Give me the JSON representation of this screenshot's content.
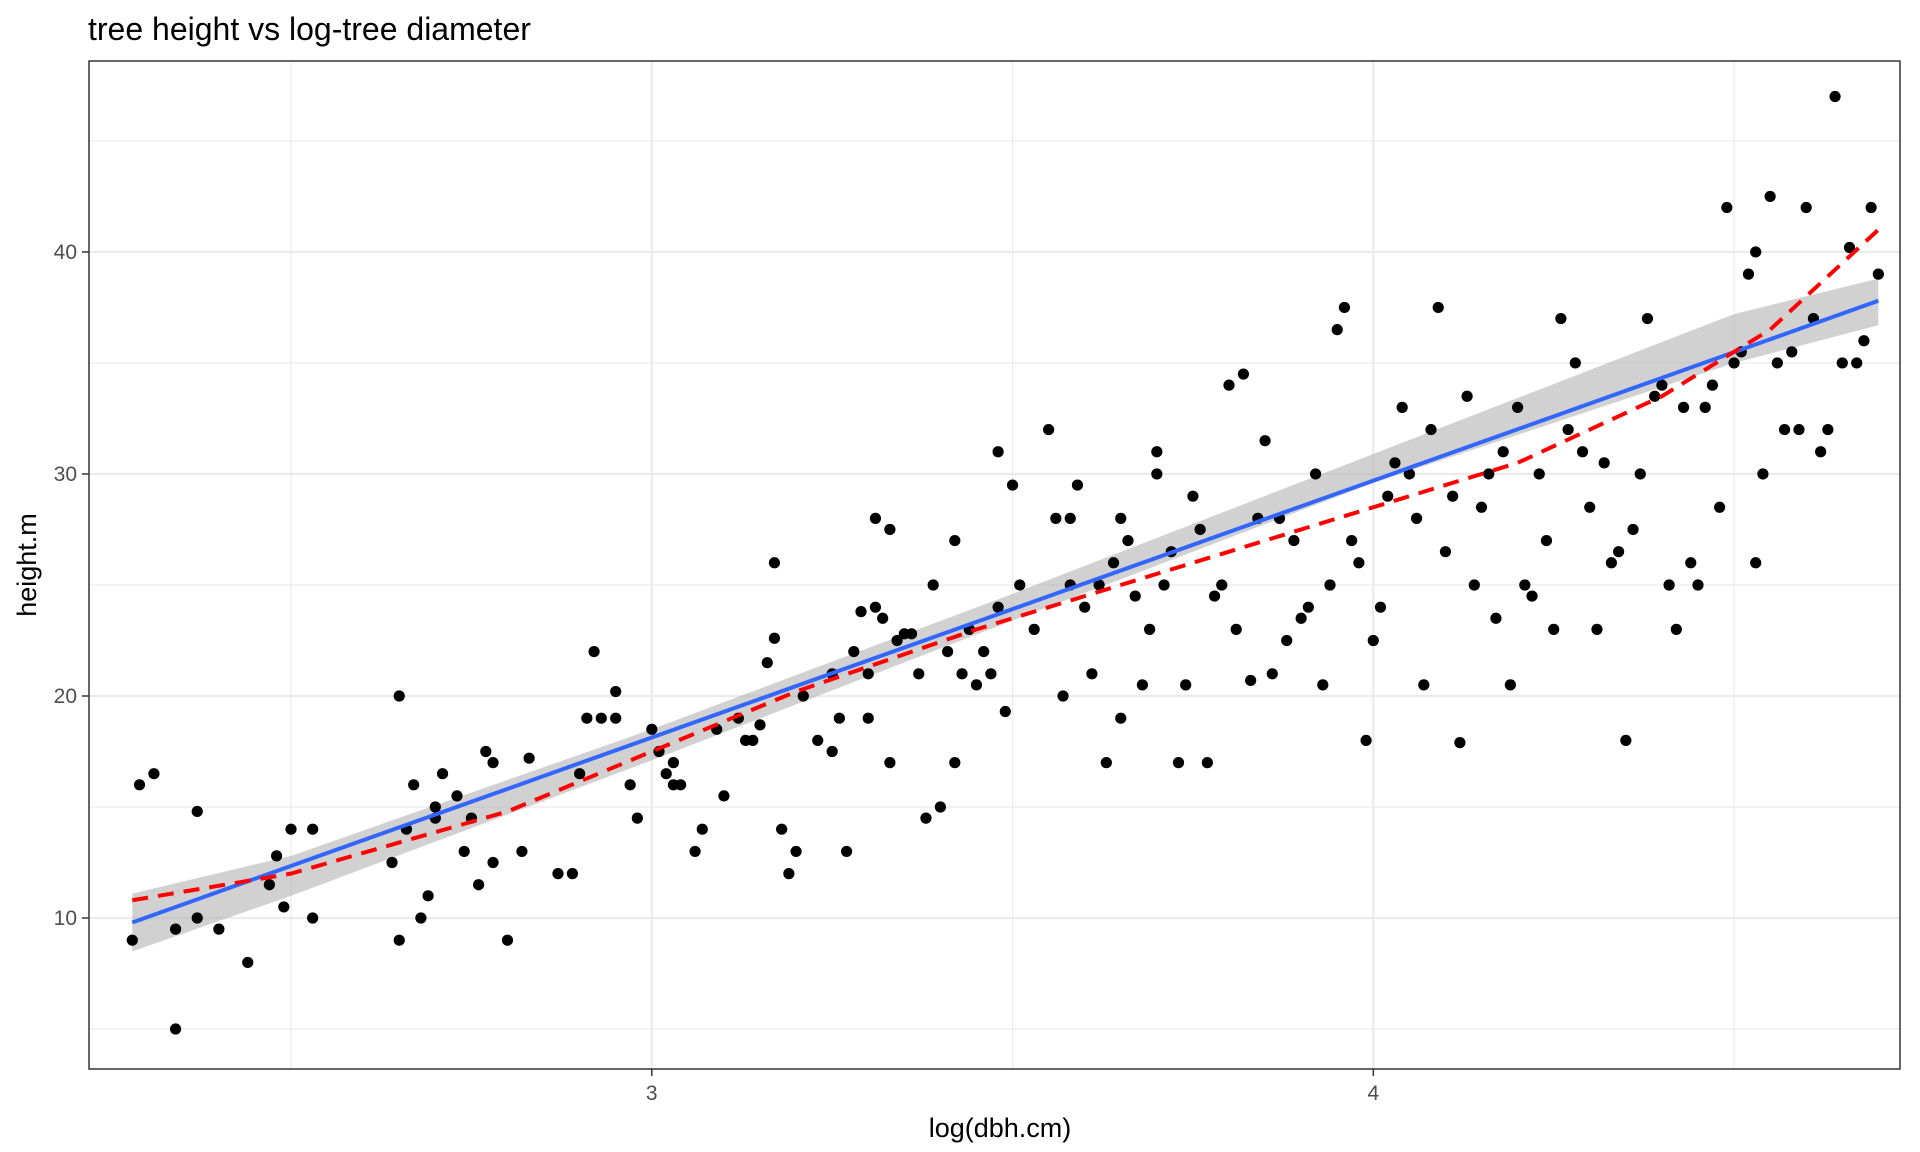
{
  "chart_data": {
    "type": "scatter",
    "title": "tree height vs log-tree diameter",
    "xlabel": "log(dbh.cm)",
    "ylabel": "height.m",
    "xlim": [
      2.22,
      4.73
    ],
    "ylim": [
      3.2,
      48.6
    ],
    "x_ticks": [
      3,
      4
    ],
    "y_ticks": [
      10,
      20,
      30,
      40
    ],
    "x_minor_ticks": [
      2.5,
      3.5,
      4.5
    ],
    "y_minor_ticks": [
      5,
      15,
      25,
      35,
      45
    ],
    "grid": true,
    "colors": {
      "points": "#000000",
      "linear_fit": "#3366ff",
      "confidence_band": "#b3b3b3",
      "smooth_fit": "#ff0000",
      "grid": "#ebebeb",
      "panel_border": "#333333"
    },
    "series": [
      {
        "type": "points",
        "values": [
          [
            2.34,
            5.0
          ],
          [
            2.34,
            9.5
          ],
          [
            2.37,
            10.0
          ],
          [
            2.4,
            9.5
          ],
          [
            2.44,
            8.0
          ],
          [
            2.47,
            11.5
          ],
          [
            2.48,
            12.8
          ],
          [
            2.49,
            10.5
          ],
          [
            2.5,
            14.0
          ],
          [
            2.53,
            14.0
          ],
          [
            2.53,
            10.0
          ],
          [
            2.31,
            16.5
          ],
          [
            2.29,
            16.0
          ],
          [
            2.37,
            14.8
          ],
          [
            2.28,
            9.0
          ],
          [
            2.64,
            12.5
          ],
          [
            2.65,
            20.0
          ],
          [
            2.65,
            9.0
          ],
          [
            2.66,
            14.0
          ],
          [
            2.67,
            16.0
          ],
          [
            2.68,
            10.0
          ],
          [
            2.69,
            11.0
          ],
          [
            2.7,
            15.0
          ],
          [
            2.7,
            14.5
          ],
          [
            2.71,
            16.5
          ],
          [
            2.73,
            15.5
          ],
          [
            2.74,
            13.0
          ],
          [
            2.75,
            14.5
          ],
          [
            2.76,
            11.5
          ],
          [
            2.77,
            17.5
          ],
          [
            2.78,
            17.0
          ],
          [
            2.78,
            12.5
          ],
          [
            2.8,
            9.0
          ],
          [
            2.82,
            13.0
          ],
          [
            2.83,
            17.2
          ],
          [
            2.87,
            12.0
          ],
          [
            2.89,
            12.0
          ],
          [
            2.9,
            16.5
          ],
          [
            2.92,
            22.0
          ],
          [
            2.93,
            19.0
          ],
          [
            2.91,
            19.0
          ],
          [
            2.95,
            19.0
          ],
          [
            2.95,
            20.2
          ],
          [
            2.97,
            16.0
          ],
          [
            2.98,
            14.5
          ],
          [
            3.0,
            18.5
          ],
          [
            3.01,
            17.5
          ],
          [
            3.02,
            16.5
          ],
          [
            3.03,
            17.0
          ],
          [
            3.03,
            16.0
          ],
          [
            3.04,
            16.0
          ],
          [
            3.06,
            13.0
          ],
          [
            3.07,
            14.0
          ],
          [
            3.09,
            18.5
          ],
          [
            3.1,
            15.5
          ],
          [
            3.12,
            19.0
          ],
          [
            3.13,
            18.0
          ],
          [
            3.14,
            18.0
          ],
          [
            3.15,
            18.7
          ],
          [
            3.16,
            21.5
          ],
          [
            3.17,
            22.6
          ],
          [
            3.17,
            26.0
          ],
          [
            3.18,
            14.0
          ],
          [
            3.19,
            12.0
          ],
          [
            3.2,
            13.0
          ],
          [
            3.21,
            20.0
          ],
          [
            3.23,
            18.0
          ],
          [
            3.25,
            21.0
          ],
          [
            3.25,
            17.5
          ],
          [
            3.26,
            19.0
          ],
          [
            3.27,
            13.0
          ],
          [
            3.28,
            22.0
          ],
          [
            3.29,
            23.8
          ],
          [
            3.3,
            21.0
          ],
          [
            3.3,
            19.0
          ],
          [
            3.31,
            24.0
          ],
          [
            3.31,
            28.0
          ],
          [
            3.32,
            23.5
          ],
          [
            3.33,
            17.0
          ],
          [
            3.33,
            27.5
          ],
          [
            3.34,
            22.5
          ],
          [
            3.35,
            22.8
          ],
          [
            3.36,
            22.8
          ],
          [
            3.37,
            21.0
          ],
          [
            3.38,
            14.5
          ],
          [
            3.39,
            25.0
          ],
          [
            3.4,
            15.0
          ],
          [
            3.41,
            22.0
          ],
          [
            3.42,
            17.0
          ],
          [
            3.42,
            27.0
          ],
          [
            3.43,
            21.0
          ],
          [
            3.44,
            23.0
          ],
          [
            3.45,
            20.5
          ],
          [
            3.46,
            22.0
          ],
          [
            3.47,
            21.0
          ],
          [
            3.48,
            24.0
          ],
          [
            3.48,
            31.0
          ],
          [
            3.49,
            19.3
          ],
          [
            3.5,
            29.5
          ],
          [
            3.51,
            25.0
          ],
          [
            3.53,
            23.0
          ],
          [
            3.55,
            32.0
          ],
          [
            3.56,
            28.0
          ],
          [
            3.57,
            20.0
          ],
          [
            3.58,
            28.0
          ],
          [
            3.58,
            25.0
          ],
          [
            3.59,
            29.5
          ],
          [
            3.6,
            24.0
          ],
          [
            3.61,
            21.0
          ],
          [
            3.62,
            25.0
          ],
          [
            3.63,
            17.0
          ],
          [
            3.64,
            26.0
          ],
          [
            3.65,
            19.0
          ],
          [
            3.65,
            28.0
          ],
          [
            3.66,
            27.0
          ],
          [
            3.67,
            24.5
          ],
          [
            3.68,
            20.5
          ],
          [
            3.69,
            23.0
          ],
          [
            3.7,
            31.0
          ],
          [
            3.7,
            30.0
          ],
          [
            3.71,
            25.0
          ],
          [
            3.72,
            26.5
          ],
          [
            3.73,
            17.0
          ],
          [
            3.74,
            20.5
          ],
          [
            3.75,
            29.0
          ],
          [
            3.76,
            27.5
          ],
          [
            3.77,
            17.0
          ],
          [
            3.78,
            24.5
          ],
          [
            3.79,
            25.0
          ],
          [
            3.8,
            34.0
          ],
          [
            3.81,
            23.0
          ],
          [
            3.82,
            34.5
          ],
          [
            3.83,
            20.7
          ],
          [
            3.84,
            28.0
          ],
          [
            3.85,
            31.5
          ],
          [
            3.86,
            21.0
          ],
          [
            3.87,
            28.0
          ],
          [
            3.88,
            22.5
          ],
          [
            3.89,
            27.0
          ],
          [
            3.9,
            23.5
          ],
          [
            3.91,
            24.0
          ],
          [
            3.92,
            30.0
          ],
          [
            3.93,
            20.5
          ],
          [
            3.94,
            25.0
          ],
          [
            3.95,
            36.5
          ],
          [
            3.96,
            37.5
          ],
          [
            3.97,
            27.0
          ],
          [
            3.98,
            26.0
          ],
          [
            3.99,
            18.0
          ],
          [
            4.0,
            22.5
          ],
          [
            4.01,
            24.0
          ],
          [
            4.02,
            29.0
          ],
          [
            4.03,
            30.5
          ],
          [
            4.04,
            33.0
          ],
          [
            4.05,
            30.0
          ],
          [
            4.06,
            28.0
          ],
          [
            4.07,
            20.5
          ],
          [
            4.08,
            32.0
          ],
          [
            4.09,
            37.5
          ],
          [
            4.1,
            26.5
          ],
          [
            4.11,
            29.0
          ],
          [
            4.12,
            17.9
          ],
          [
            4.13,
            33.5
          ],
          [
            4.14,
            25.0
          ],
          [
            4.15,
            28.5
          ],
          [
            4.16,
            30.0
          ],
          [
            4.17,
            23.5
          ],
          [
            4.18,
            31.0
          ],
          [
            4.19,
            20.5
          ],
          [
            4.2,
            33.0
          ],
          [
            4.21,
            25.0
          ],
          [
            4.22,
            24.5
          ],
          [
            4.23,
            30.0
          ],
          [
            4.24,
            27.0
          ],
          [
            4.25,
            23.0
          ],
          [
            4.26,
            37.0
          ],
          [
            4.27,
            32.0
          ],
          [
            4.28,
            35.0
          ],
          [
            4.29,
            31.0
          ],
          [
            4.3,
            28.5
          ],
          [
            4.31,
            23.0
          ],
          [
            4.32,
            30.5
          ],
          [
            4.33,
            26.0
          ],
          [
            4.34,
            26.5
          ],
          [
            4.35,
            18.0
          ],
          [
            4.36,
            27.5
          ],
          [
            4.37,
            30.0
          ],
          [
            4.38,
            37.0
          ],
          [
            4.39,
            33.5
          ],
          [
            4.4,
            34.0
          ],
          [
            4.41,
            25.0
          ],
          [
            4.42,
            23.0
          ],
          [
            4.43,
            33.0
          ],
          [
            4.44,
            26.0
          ],
          [
            4.45,
            25.0
          ],
          [
            4.46,
            33.0
          ],
          [
            4.47,
            34.0
          ],
          [
            4.48,
            28.5
          ],
          [
            4.49,
            42.0
          ],
          [
            4.5,
            35.0
          ],
          [
            4.51,
            35.5
          ],
          [
            4.52,
            39.0
          ],
          [
            4.53,
            40.0
          ],
          [
            4.53,
            26.0
          ],
          [
            4.54,
            30.0
          ],
          [
            4.55,
            42.5
          ],
          [
            4.56,
            35.0
          ],
          [
            4.57,
            32.0
          ],
          [
            4.58,
            35.5
          ],
          [
            4.59,
            32.0
          ],
          [
            4.6,
            42.0
          ],
          [
            4.61,
            37.0
          ],
          [
            4.62,
            31.0
          ],
          [
            4.63,
            32.0
          ],
          [
            4.64,
            47.0
          ],
          [
            4.65,
            35.0
          ],
          [
            4.66,
            40.2
          ],
          [
            4.67,
            35.0
          ],
          [
            4.68,
            36.0
          ],
          [
            4.69,
            42.0
          ],
          [
            4.7,
            39.0
          ]
        ]
      },
      {
        "type": "line",
        "line_style": "solid",
        "values": [
          [
            2.28,
            9.8
          ],
          [
            4.7,
            37.8
          ]
        ]
      },
      {
        "type": "line",
        "line_style": "dashed",
        "values": [
          [
            2.28,
            10.8
          ],
          [
            2.5,
            12.0
          ],
          [
            2.8,
            14.8
          ],
          [
            3.0,
            17.5
          ],
          [
            3.2,
            20.2
          ],
          [
            3.45,
            23.0
          ],
          [
            3.75,
            26.0
          ],
          [
            4.0,
            28.5
          ],
          [
            4.2,
            30.5
          ],
          [
            4.4,
            33.5
          ],
          [
            4.55,
            36.5
          ],
          [
            4.7,
            41.0
          ]
        ]
      },
      {
        "type": "band",
        "values": [
          [
            2.28,
            8.5,
            11.1
          ],
          [
            2.5,
            11.0,
            12.8
          ],
          [
            3.0,
            17.1,
            18.5
          ],
          [
            3.5,
            23.4,
            24.6
          ],
          [
            4.0,
            29.6,
            30.9
          ],
          [
            4.5,
            35.0,
            37.2
          ],
          [
            4.7,
            36.7,
            38.8
          ]
        ]
      }
    ]
  }
}
